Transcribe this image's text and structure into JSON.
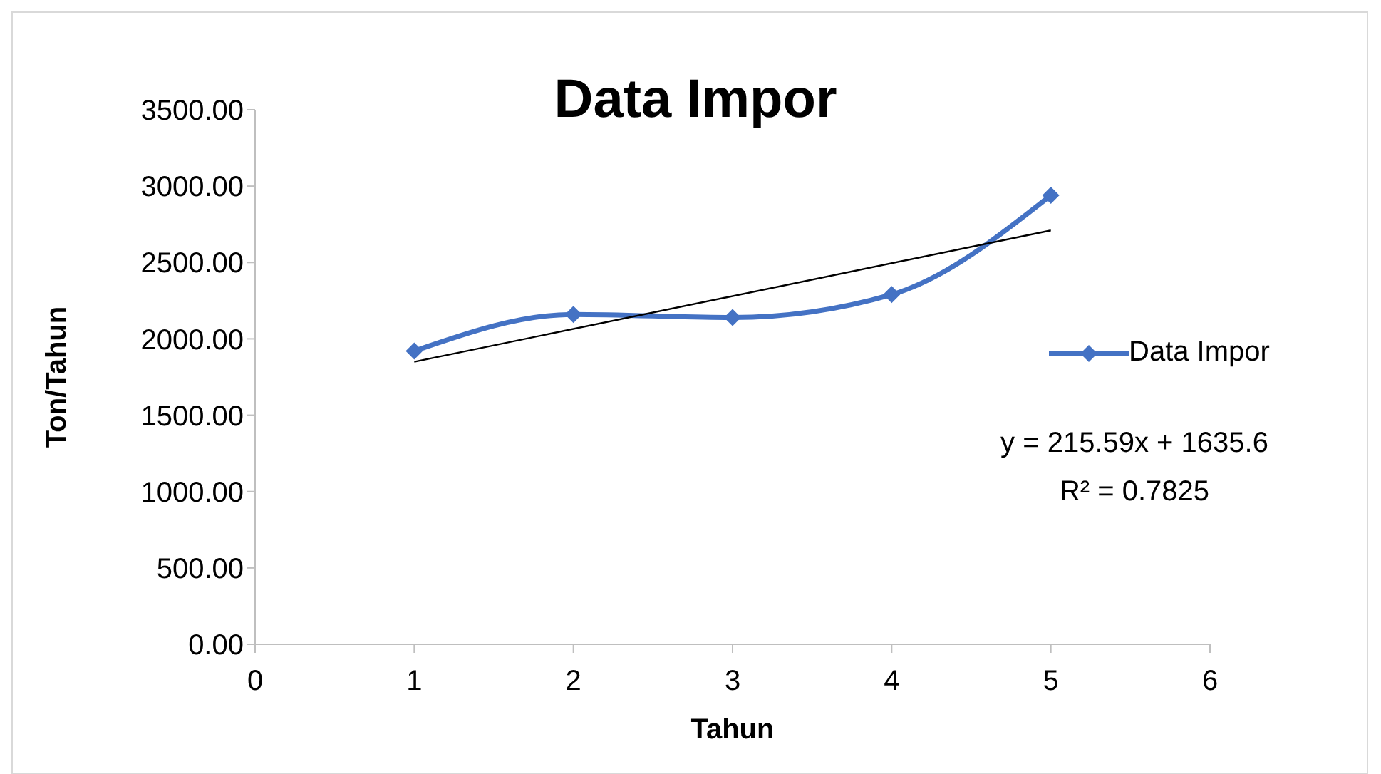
{
  "chart_data": {
    "type": "line",
    "title": "Data Impor",
    "xlabel": "Tahun",
    "ylabel": "Ton/Tahun",
    "x": [
      1,
      2,
      3,
      4,
      5
    ],
    "series": [
      {
        "name": "Data Impor",
        "color": "#4472c4",
        "values": [
          1920,
          2160,
          2140,
          2290,
          2940
        ],
        "marker": "diamond"
      },
      {
        "type": "line",
        "color": "#000000",
        "x": [
          1,
          5
        ],
        "values": [
          1850,
          2710
        ],
        "marker": "none"
      }
    ],
    "xlim": [
      0,
      6
    ],
    "xticks": [
      0,
      1,
      2,
      3,
      4,
      5,
      6
    ],
    "ylim": [
      0,
      3500
    ],
    "yticks": [
      {
        "value": 0,
        "label": "0.00"
      },
      {
        "value": 500,
        "label": "500.00"
      },
      {
        "value": 1000,
        "label": "1000.00"
      },
      {
        "value": 1500,
        "label": "1500.00"
      },
      {
        "value": 2000,
        "label": "2000.00"
      },
      {
        "value": 2500,
        "label": "2500.00"
      },
      {
        "value": 3000,
        "label": "3000.00"
      },
      {
        "value": 3500,
        "label": "3500.00"
      }
    ],
    "grid": false,
    "legend": "right",
    "annotations": [
      "y = 215.59x + 1635.6",
      "R² = 0.7825"
    ]
  }
}
